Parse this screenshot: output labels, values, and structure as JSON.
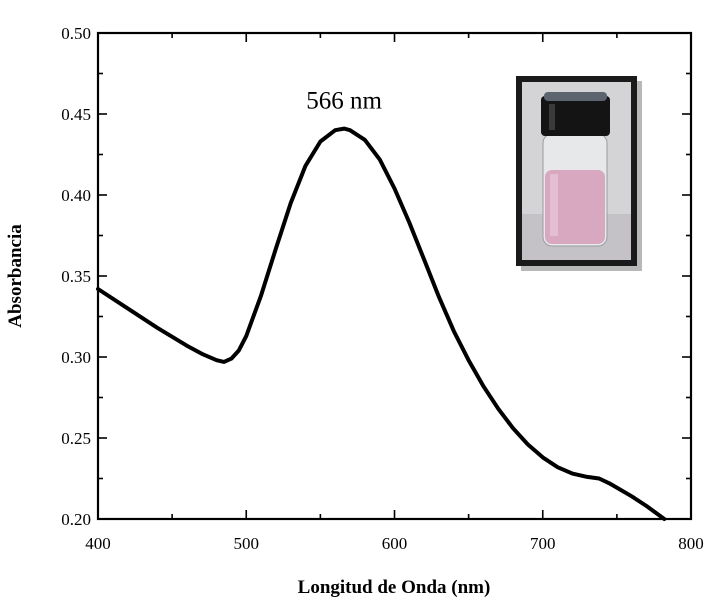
{
  "chart_data": {
    "type": "line",
    "title": "",
    "xlabel": "Longitud de Onda (nm)",
    "ylabel": "Absorbancia",
    "xlim": [
      400,
      800
    ],
    "ylim": [
      0.2,
      0.5
    ],
    "x_ticks": [
      "400",
      "500",
      "600",
      "700",
      "800"
    ],
    "y_ticks": [
      "0.20",
      "0.25",
      "0.30",
      "0.35",
      "0.40",
      "0.45",
      "0.50"
    ],
    "grid": false,
    "legend": "none",
    "annotations": [
      {
        "text": "566 nm",
        "x": 566,
        "y": 0.441
      }
    ],
    "inset_image": "photo of a glass vial with black cap containing a pink solution",
    "series": [
      {
        "color": "#000000",
        "x": [
          400,
          420,
          440,
          460,
          470,
          480,
          485,
          490,
          495,
          500,
          510,
          520,
          530,
          540,
          550,
          560,
          566,
          570,
          580,
          590,
          600,
          610,
          620,
          630,
          640,
          650,
          660,
          670,
          680,
          690,
          700,
          710,
          720,
          730,
          738,
          745,
          760,
          770,
          782
        ],
        "y": [
          0.342,
          0.33,
          0.318,
          0.307,
          0.302,
          0.298,
          0.297,
          0.299,
          0.304,
          0.313,
          0.338,
          0.367,
          0.395,
          0.418,
          0.433,
          0.44,
          0.441,
          0.44,
          0.434,
          0.422,
          0.404,
          0.383,
          0.36,
          0.337,
          0.316,
          0.298,
          0.282,
          0.268,
          0.256,
          0.246,
          0.238,
          0.232,
          0.228,
          0.226,
          0.225,
          0.222,
          0.214,
          0.208,
          0.2
        ]
      }
    ]
  }
}
